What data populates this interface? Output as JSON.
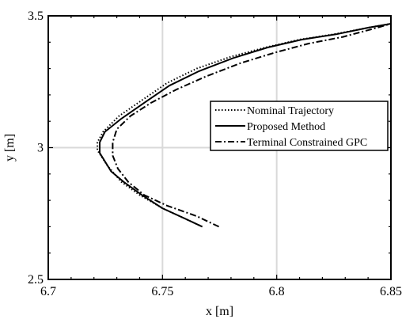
{
  "chart_data": {
    "type": "line",
    "title": "",
    "xlabel": "x [m]",
    "ylabel": "y [m]",
    "xlim": [
      6.7,
      6.85
    ],
    "ylim": [
      2.5,
      3.5
    ],
    "grid": true,
    "legend_position": "right",
    "x_ticks": [
      6.7,
      6.75,
      6.8,
      6.85
    ],
    "x_tick_labels": [
      "6.7",
      "6.75",
      "6.8",
      "6.85"
    ],
    "y_ticks": [
      2.5,
      3,
      3.5
    ],
    "y_tick_labels": [
      "2.5",
      "3",
      "3.5"
    ],
    "series": [
      {
        "name": "Nominal Trajectory",
        "style": "dotted",
        "color": "#000000",
        "x": [
          6.7674,
          6.76,
          6.75,
          6.74,
          6.732,
          6.726,
          6.7215,
          6.7215,
          6.724,
          6.731,
          6.741,
          6.752,
          6.765,
          6.78,
          6.795,
          6.81,
          6.825,
          6.84,
          6.85
        ],
        "y": [
          2.7,
          2.73,
          2.77,
          2.82,
          2.87,
          2.93,
          2.99,
          3.02,
          3.06,
          3.12,
          3.18,
          3.245,
          3.3,
          3.345,
          3.38,
          3.41,
          3.43,
          3.455,
          3.47
        ]
      },
      {
        "name": "Proposed Method",
        "style": "solid",
        "color": "#000000",
        "x": [
          6.7674,
          6.76,
          6.75,
          6.741,
          6.733,
          6.7275,
          6.7225,
          6.7225,
          6.7248,
          6.732,
          6.742,
          6.753,
          6.766,
          6.781,
          6.796,
          6.811,
          6.826,
          6.84,
          6.85
        ],
        "y": [
          2.7,
          2.73,
          2.77,
          2.82,
          2.87,
          2.91,
          2.98,
          3.02,
          3.06,
          3.11,
          3.17,
          3.235,
          3.29,
          3.34,
          3.38,
          3.41,
          3.43,
          3.455,
          3.47
        ]
      },
      {
        "name": "Terminal Constrained GPC",
        "style": "dashdot",
        "color": "#000000",
        "x": [
          6.7747,
          6.765,
          6.752,
          6.742,
          6.735,
          6.7305,
          6.7282,
          6.7282,
          6.73,
          6.736,
          6.745,
          6.756,
          6.769,
          6.784,
          6.799,
          6.814,
          6.829,
          6.842,
          6.85
        ],
        "y": [
          2.7,
          2.74,
          2.78,
          2.82,
          2.87,
          2.92,
          2.97,
          3.02,
          3.07,
          3.12,
          3.17,
          3.22,
          3.27,
          3.32,
          3.36,
          3.395,
          3.42,
          3.45,
          3.47
        ]
      }
    ]
  }
}
